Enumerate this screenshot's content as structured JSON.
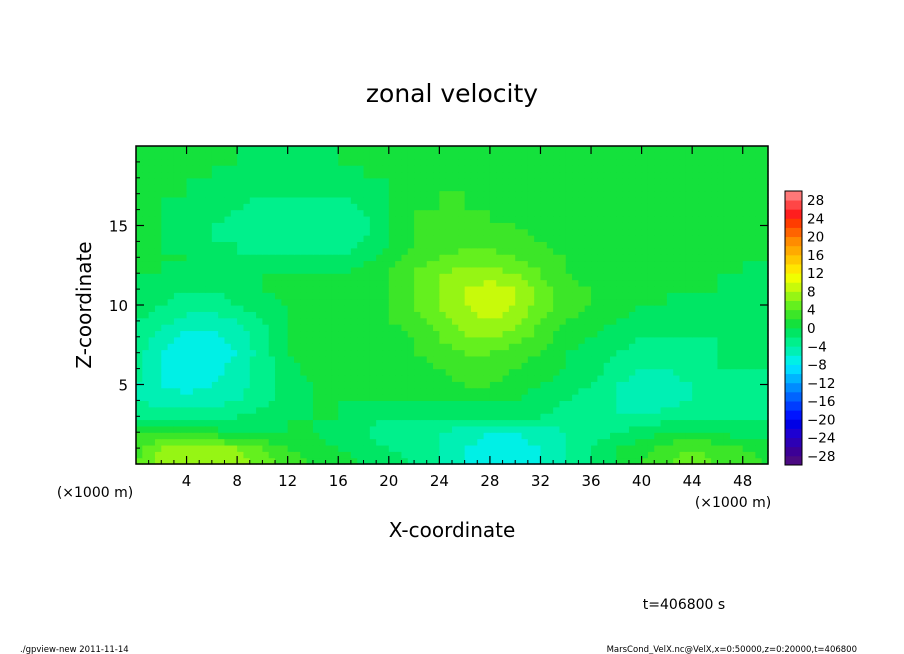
{
  "chart_data": {
    "type": "heatmap",
    "title": "zonal velocity",
    "xlabel": "X-coordinate",
    "ylabel": "Z-coordinate",
    "x_unit_note": "(×1000 m)",
    "y_unit_note": "(×1000 m)",
    "xlim": [
      0,
      50
    ],
    "ylim": [
      0,
      20
    ],
    "x_ticks": [
      "4",
      "8",
      "12",
      "16",
      "20",
      "24",
      "28",
      "32",
      "36",
      "40",
      "44",
      "48"
    ],
    "x_tick_values": [
      4,
      8,
      12,
      16,
      20,
      24,
      28,
      32,
      36,
      40,
      44,
      48
    ],
    "y_ticks": [
      "5",
      "10",
      "15"
    ],
    "y_tick_values": [
      5,
      10,
      15
    ],
    "colorbar": {
      "labels": [
        "28",
        "24",
        "20",
        "16",
        "12",
        "8",
        "4",
        "0",
        "−4",
        "−8",
        "−12",
        "−16",
        "−20",
        "−24",
        "−28"
      ],
      "levels": [
        -30,
        -28,
        -26,
        -24,
        -22,
        -20,
        -18,
        -16,
        -14,
        -12,
        -10,
        -8,
        -6,
        -4,
        -2,
        0,
        2,
        4,
        6,
        8,
        10,
        12,
        14,
        16,
        18,
        20,
        22,
        24,
        26,
        28,
        30
      ],
      "colors": [
        "#4b0a82",
        "#3c0096",
        "#2d00b4",
        "#1e00d2",
        "#0000e6",
        "#0014ff",
        "#003cff",
        "#0064ff",
        "#008cff",
        "#00b4ff",
        "#00dcff",
        "#00f0e6",
        "#00f0b4",
        "#00f08c",
        "#00e664",
        "#14e13c",
        "#3ce628",
        "#64f01e",
        "#96f514",
        "#c8fa0a",
        "#f0ff00",
        "#ffe600",
        "#ffc800",
        "#ffaa00",
        "#ff8c00",
        "#ff6400",
        "#ff3c00",
        "#ff1e1e",
        "#ff4646",
        "#ff7878"
      ]
    },
    "field_x": [
      0,
      2,
      4,
      6,
      8,
      10,
      12,
      14,
      16,
      18,
      20,
      22,
      24,
      26,
      28,
      30,
      32,
      34,
      36,
      38,
      40,
      42,
      44,
      46,
      48,
      50
    ],
    "field_z": [
      0,
      1,
      2,
      3,
      4,
      5,
      6,
      7,
      8,
      9,
      10,
      11,
      12,
      13,
      14,
      15,
      16,
      17,
      18,
      19,
      20
    ],
    "field_values": [
      [
        4,
        7,
        8,
        8,
        7,
        5,
        3,
        2,
        1,
        0,
        -1,
        -2,
        -4,
        -6,
        -7,
        -7,
        -6,
        -4,
        -2,
        0,
        2,
        4,
        5,
        4,
        3,
        2
      ],
      [
        3,
        6,
        7,
        7,
        6,
        4,
        2,
        1,
        0,
        -1,
        -2,
        -3,
        -4,
        -6,
        -7,
        -7,
        -6,
        -4,
        -2,
        0,
        1,
        3,
        4,
        3,
        2,
        1
      ],
      [
        2,
        2,
        1,
        1,
        0,
        0,
        0,
        0,
        -1,
        -2,
        -3,
        -3,
        -4,
        -5,
        -6,
        -6,
        -5,
        -4,
        -3,
        -2,
        -1,
        0,
        0,
        0,
        -1,
        -1
      ],
      [
        -2,
        -3,
        -3,
        -3,
        -2,
        -1,
        0,
        0,
        0,
        -1,
        -2,
        -2,
        -2,
        -2,
        -2,
        -2,
        -2,
        -3,
        -3,
        -4,
        -4,
        -3,
        -2,
        -2,
        -2,
        -2
      ],
      [
        -4,
        -5,
        -5,
        -5,
        -4,
        -3,
        -1,
        0,
        0,
        0,
        0,
        0,
        0,
        0,
        0,
        0,
        -1,
        -2,
        -3,
        -4,
        -5,
        -5,
        -4,
        -3,
        -3,
        -3
      ],
      [
        -4,
        -6,
        -7,
        -6,
        -5,
        -3,
        -1,
        0,
        1,
        0,
        0,
        1,
        1,
        2,
        2,
        1,
        0,
        -1,
        -2,
        -4,
        -5,
        -5,
        -4,
        -3,
        -3,
        -3
      ],
      [
        -3,
        -6,
        -7,
        -7,
        -5,
        -3,
        -1,
        1,
        2,
        1,
        1,
        1,
        2,
        3,
        3,
        2,
        1,
        0,
        -1,
        -3,
        -4,
        -4,
        -3,
        -2,
        -2,
        -2
      ],
      [
        -3,
        -6,
        -8,
        -8,
        -6,
        -3,
        0,
        2,
        1,
        0,
        1,
        2,
        3,
        4,
        4,
        3,
        2,
        0,
        -1,
        -2,
        -3,
        -3,
        -4,
        -2,
        -2,
        -2
      ],
      [
        -2,
        -5,
        -7,
        -7,
        -5,
        -3,
        0,
        1,
        0,
        0,
        1,
        2,
        4,
        6,
        6,
        5,
        3,
        1,
        0,
        -1,
        -2,
        -2,
        -2,
        -2,
        -2,
        -2
      ],
      [
        -2,
        -3,
        -5,
        -5,
        -4,
        -2,
        0,
        1,
        1,
        1,
        2,
        3,
        5,
        7,
        8,
        7,
        4,
        2,
        1,
        0,
        -1,
        -1,
        -1,
        -1,
        -1,
        -2
      ],
      [
        -1,
        -2,
        -3,
        -3,
        -2,
        -1,
        0,
        1,
        1,
        1,
        2,
        4,
        6,
        8,
        9,
        8,
        5,
        3,
        2,
        1,
        0,
        0,
        -1,
        -1,
        -1,
        -1
      ],
      [
        0,
        -1,
        -2,
        -2,
        -1,
        0,
        1,
        1,
        1,
        1,
        2,
        4,
        6,
        8,
        9,
        8,
        5,
        3,
        2,
        1,
        0,
        0,
        0,
        0,
        -1,
        -1
      ],
      [
        0,
        0,
        -1,
        -1,
        -1,
        0,
        0,
        0,
        0,
        1,
        2,
        4,
        6,
        7,
        7,
        6,
        4,
        2,
        1,
        0,
        0,
        0,
        0,
        0,
        0,
        -1
      ],
      [
        0,
        0,
        0,
        -1,
        -2,
        -2,
        -2,
        -2,
        -2,
        -1,
        1,
        3,
        4,
        5,
        5,
        4,
        3,
        2,
        1,
        0,
        0,
        0,
        0,
        0,
        0,
        0
      ],
      [
        0,
        0,
        -1,
        -2,
        -2,
        -3,
        -3,
        -3,
        -3,
        -2,
        0,
        2,
        3,
        3,
        3,
        3,
        2,
        1,
        1,
        0,
        0,
        0,
        0,
        0,
        0,
        0
      ],
      [
        0,
        0,
        -1,
        -2,
        -3,
        -3,
        -4,
        -4,
        -4,
        -3,
        0,
        2,
        3,
        3,
        2,
        2,
        1,
        1,
        0,
        0,
        0,
        0,
        0,
        0,
        0,
        0
      ],
      [
        0,
        0,
        -1,
        -1,
        -2,
        -3,
        -3,
        -3,
        -3,
        -2,
        0,
        2,
        2,
        2,
        2,
        1,
        1,
        0,
        0,
        0,
        0,
        0,
        0,
        0,
        0,
        0
      ],
      [
        0,
        0,
        0,
        -1,
        -1,
        -2,
        -2,
        -2,
        -2,
        -1,
        0,
        1,
        2,
        2,
        1,
        1,
        0,
        0,
        0,
        0,
        0,
        0,
        0,
        0,
        0,
        0
      ],
      [
        0,
        0,
        0,
        0,
        -1,
        -1,
        -1,
        -1,
        -1,
        0,
        0,
        1,
        1,
        1,
        1,
        0,
        0,
        0,
        0,
        0,
        0,
        0,
        0,
        0,
        0,
        0
      ],
      [
        0,
        0,
        0,
        0,
        0,
        -1,
        -1,
        -1,
        0,
        0,
        0,
        0,
        1,
        1,
        0,
        0,
        0,
        0,
        0,
        0,
        0,
        0,
        0,
        0,
        0,
        0
      ],
      [
        0,
        0,
        0,
        0,
        0,
        0,
        -1,
        -1,
        0,
        0,
        0,
        0,
        0,
        0,
        0,
        0,
        0,
        0,
        0,
        0,
        0,
        0,
        0,
        0,
        0,
        0
      ]
    ],
    "grid": false,
    "legend": "colorbar-right"
  },
  "time_label": "t=406800 s",
  "footer": {
    "left": "./gpview-new  2011-11-14",
    "right": "MarsCond_VelX.nc@VelX,x=0:50000,z=0:20000,t=406800"
  }
}
